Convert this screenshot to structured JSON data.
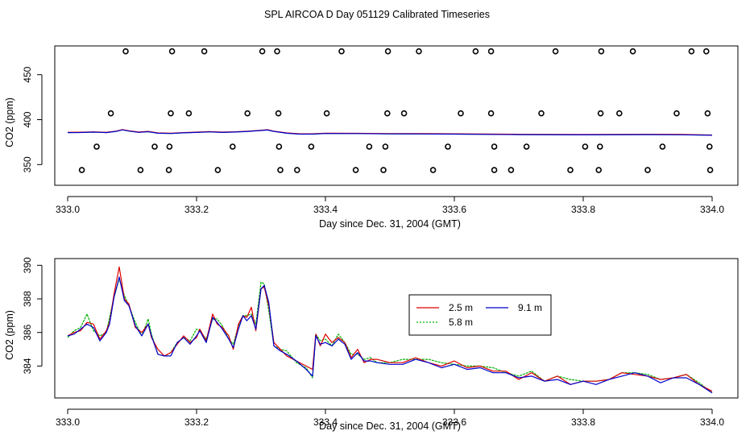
{
  "title": "SPL AIRCOA D  Day 051129  Calibrated Timeseries",
  "colors": {
    "s2_5": "#e00000",
    "s5_8": "#00b000",
    "s9_1": "#0000cc",
    "axis": "#000000"
  },
  "chart_data": [
    {
      "type": "line",
      "xlabel": "Day since Dec. 31, 2004 (GMT)",
      "ylabel": "CO2 (ppm)",
      "xlim": [
        333.0,
        334.0
      ],
      "ylim": [
        327,
        482
      ],
      "xticks": [
        "333.0",
        "333.2",
        "333.4",
        "333.6",
        "333.8",
        "334.0"
      ],
      "yticks": [
        {
          "v": 350,
          "label": "350"
        },
        {
          "v": 400,
          "label": "400"
        },
        {
          "v": 450,
          "label": "450"
        }
      ],
      "points": {
        "rows": [
          {
            "y": 476,
            "x": [
              333.09,
              333.162,
              333.212,
              333.302,
              333.325,
              333.425,
              333.497,
              333.545,
              333.633,
              333.657,
              333.757,
              333.828,
              333.877,
              333.968,
              333.991
            ]
          },
          {
            "y": 407,
            "x": [
              333.067,
              333.16,
              333.188,
              333.279,
              333.327,
              333.402,
              333.496,
              333.522,
              333.61,
              333.657,
              333.735,
              333.827,
              333.856,
              333.945,
              333.993
            ]
          },
          {
            "y": 370,
            "x": [
              333.045,
              333.135,
              333.158,
              333.256,
              333.328,
              333.378,
              333.468,
              333.493,
              333.59,
              333.662,
              333.712,
              333.803,
              333.826,
              333.923,
              333.996
            ]
          },
          {
            "y": 344,
            "x": [
              333.022,
              333.113,
              333.157,
              333.233,
              333.33,
              333.356,
              333.447,
              333.49,
              333.567,
              333.662,
              333.688,
              333.78,
              333.824,
              333.9,
              333.997
            ]
          }
        ]
      },
      "series": [
        {
          "name": "co2-line",
          "values": [
            [
              333.0,
              385.6
            ],
            [
              333.02,
              385.7
            ],
            [
              333.04,
              386.1
            ],
            [
              333.06,
              385.6
            ],
            [
              333.075,
              386.9
            ],
            [
              333.085,
              388.6
            ],
            [
              333.095,
              387.3
            ],
            [
              333.11,
              385.9
            ],
            [
              333.125,
              386.6
            ],
            [
              333.14,
              384.9
            ],
            [
              333.16,
              384.6
            ],
            [
              333.18,
              385.3
            ],
            [
              333.2,
              385.8
            ],
            [
              333.22,
              386.4
            ],
            [
              333.24,
              385.8
            ],
            [
              333.26,
              386.2
            ],
            [
              333.28,
              386.9
            ],
            [
              333.3,
              387.9
            ],
            [
              333.31,
              388.5
            ],
            [
              333.32,
              386.9
            ],
            [
              333.34,
              384.9
            ],
            [
              333.36,
              383.9
            ],
            [
              333.38,
              383.9
            ],
            [
              333.4,
              384.6
            ],
            [
              333.45,
              384.5
            ],
            [
              333.5,
              384.2
            ],
            [
              333.55,
              384.1
            ],
            [
              333.6,
              383.9
            ],
            [
              333.7,
              383.4
            ],
            [
              333.8,
              383.1
            ],
            [
              333.9,
              383.4
            ],
            [
              333.95,
              383.2
            ],
            [
              334.0,
              382.6
            ]
          ]
        }
      ]
    },
    {
      "type": "line",
      "xlabel": "Day since Dec. 31, 2004 (GMT)",
      "ylabel": "CO2 (ppm)",
      "xlim": [
        333.0,
        334.0
      ],
      "ylim": [
        382.1,
        390.4
      ],
      "xticks": [
        "333.0",
        "333.2",
        "333.4",
        "333.6",
        "333.8",
        "334.0"
      ],
      "yticks": [
        {
          "v": 384,
          "label": "384"
        },
        {
          "v": 386,
          "label": "386"
        },
        {
          "v": 388,
          "label": "388"
        },
        {
          "v": 390,
          "label": "390"
        }
      ],
      "legend": [
        {
          "label": "2.5 m",
          "series": "s2_5",
          "style": "solid"
        },
        {
          "label": "5.8 m",
          "series": "s5_8",
          "style": "dashed"
        },
        {
          "label": "9.1 m",
          "series": "s9_1",
          "style": "solid"
        }
      ],
      "base": [
        [
          333.0,
          385.8
        ],
        [
          333.01,
          385.9
        ],
        [
          333.02,
          386.2
        ],
        [
          333.03,
          386.6
        ],
        [
          333.04,
          386.3
        ],
        [
          333.05,
          385.7
        ],
        [
          333.06,
          386.0
        ],
        [
          333.065,
          386.6
        ],
        [
          333.072,
          388.2
        ],
        [
          333.08,
          389.5
        ],
        [
          333.088,
          388.0
        ],
        [
          333.095,
          387.6
        ],
        [
          333.105,
          386.5
        ],
        [
          333.115,
          385.9
        ],
        [
          333.125,
          386.5
        ],
        [
          333.13,
          385.8
        ],
        [
          333.14,
          384.8
        ],
        [
          333.15,
          384.6
        ],
        [
          333.16,
          384.7
        ],
        [
          333.17,
          385.4
        ],
        [
          333.18,
          385.8
        ],
        [
          333.19,
          385.3
        ],
        [
          333.2,
          385.9
        ],
        [
          333.205,
          386.1
        ],
        [
          333.215,
          385.5
        ],
        [
          333.225,
          386.9
        ],
        [
          333.232,
          386.6
        ],
        [
          333.24,
          386.3
        ],
        [
          333.25,
          385.7
        ],
        [
          333.257,
          385.1
        ],
        [
          333.265,
          386.3
        ],
        [
          333.272,
          387.0
        ],
        [
          333.278,
          386.8
        ],
        [
          333.285,
          387.2
        ],
        [
          333.292,
          386.2
        ],
        [
          333.3,
          388.6
        ],
        [
          333.305,
          388.9
        ],
        [
          333.312,
          387.5
        ],
        [
          333.32,
          385.2
        ],
        [
          333.33,
          384.9
        ],
        [
          333.34,
          384.7
        ],
        [
          333.355,
          384.3
        ],
        [
          333.37,
          383.9
        ],
        [
          333.38,
          383.5
        ],
        [
          333.385,
          385.8
        ],
        [
          333.392,
          385.3
        ],
        [
          333.4,
          385.5
        ],
        [
          333.41,
          385.2
        ],
        [
          333.42,
          385.7
        ],
        [
          333.43,
          385.3
        ],
        [
          333.44,
          384.5
        ],
        [
          333.45,
          384.8
        ],
        [
          333.46,
          384.3
        ],
        [
          333.47,
          384.4
        ],
        [
          333.48,
          384.2
        ],
        [
          333.5,
          384.1
        ],
        [
          333.52,
          384.2
        ],
        [
          333.54,
          384.4
        ],
        [
          333.56,
          384.3
        ],
        [
          333.58,
          384.0
        ],
        [
          333.6,
          384.1
        ],
        [
          333.62,
          383.9
        ],
        [
          333.64,
          383.9
        ],
        [
          333.66,
          383.7
        ],
        [
          333.68,
          383.6
        ],
        [
          333.7,
          383.3
        ],
        [
          333.72,
          383.5
        ],
        [
          333.74,
          383.1
        ],
        [
          333.76,
          383.3
        ],
        [
          333.78,
          383.0
        ],
        [
          333.8,
          383.1
        ],
        [
          333.82,
          383.0
        ],
        [
          333.84,
          383.2
        ],
        [
          333.86,
          383.5
        ],
        [
          333.88,
          383.6
        ],
        [
          333.9,
          383.4
        ],
        [
          333.92,
          383.1
        ],
        [
          333.94,
          383.3
        ],
        [
          333.96,
          383.4
        ],
        [
          333.98,
          382.9
        ],
        [
          334.0,
          382.4
        ]
      ],
      "series": [
        {
          "name": "2.5 m",
          "key": "s2_5",
          "offsets": [
            0.0,
            0.1,
            -0.1,
            0.0,
            0.2,
            -0.1,
            0.1,
            0.0,
            0.1,
            0.4,
            0.0,
            0.1,
            -0.2,
            0.1,
            0.0,
            -0.1,
            0.2,
            0.0,
            0.1,
            -0.1,
            0.0,
            0.1,
            -0.2,
            0.1,
            0.0,
            0.2,
            -0.1,
            0.0,
            0.1,
            -0.1,
            0.2,
            0.0,
            0.1,
            0.3,
            -0.1,
            0.0,
            -0.2,
            0.1,
            0.2,
            0.1,
            -0.1,
            0.0,
            0.1,
            0.3,
            0.1,
            -0.1,
            0.4,
            0.2,
            0.0,
            0.1,
            0.0,
            0.2,
            -0.1,
            0.0,
            0.2,
            0.1,
            0.0,
            0.1,
            -0.1,
            0.0,
            0.2,
            0.0,
            0.1,
            0.0,
            0.1,
            -0.1,
            0.1,
            0.0,
            0.1,
            -0.1,
            0.0,
            0.1,
            0.0,
            0.1,
            -0.1,
            0.0,
            0.1,
            0.0,
            0.1,
            0.0,
            0.1
          ]
        },
        {
          "name": "5.8 m",
          "key": "s5_8",
          "offsets": [
            -0.1,
            0.2,
            0.1,
            0.5,
            -0.2,
            0.1,
            0.0,
            0.3,
            -0.1,
            -0.3,
            0.2,
            0.0,
            0.1,
            -0.1,
            0.3,
            0.1,
            -0.1,
            0.0,
            0.1,
            0.0,
            -0.1,
            0.2,
            0.3,
            0.0,
            0.1,
            -0.1,
            0.2,
            0.1,
            -0.1,
            0.2,
            0.1,
            0.0,
            0.2,
            -0.1,
            0.3,
            0.4,
            0.0,
            -0.2,
            0.0,
            0.1,
            0.2,
            -0.1,
            0.0,
            -0.2,
            0.1,
            0.2,
            0.1,
            0.0,
            0.2,
            0.1,
            0.2,
            -0.1,
            0.1,
            0.1,
            0.0,
            0.1,
            0.2,
            0.0,
            0.1,
            0.2,
            0.0,
            0.1,
            0.1,
            0.2,
            0.0,
            0.1,
            0.2,
            0.0,
            0.1,
            0.2,
            0.0,
            0.1,
            0.0,
            0.1,
            0.0,
            0.1,
            0.1,
            0.0,
            0.1,
            0.1,
            0.0
          ]
        },
        {
          "name": "9.1 m",
          "key": "s9_1",
          "offsets": [
            0.0,
            0.0,
            0.0,
            -0.1,
            0.0,
            -0.2,
            0.0,
            -0.1,
            -0.1,
            -0.2,
            -0.1,
            0.0,
            -0.1,
            -0.1,
            0.0,
            0.0,
            -0.1,
            0.0,
            -0.1,
            0.0,
            -0.1,
            0.0,
            -0.1,
            0.0,
            -0.1,
            0.0,
            0.0,
            -0.1,
            -0.1,
            0.0,
            -0.1,
            0.0,
            -0.1,
            -0.2,
            0.0,
            0.0,
            -0.1,
            0.3,
            0.0,
            0.0,
            0.0,
            0.0,
            -0.1,
            -0.1,
            0.0,
            0.0,
            -0.1,
            0.0,
            -0.1,
            0.0,
            -0.1,
            0.0,
            0.0,
            -0.1,
            0.0,
            0.0,
            -0.1,
            0.0,
            -0.1,
            -0.1,
            0.0,
            -0.1,
            0.0,
            -0.1,
            0.0,
            0.0,
            -0.1,
            0.0,
            -0.1,
            -0.1,
            0.0,
            -0.1,
            0.0,
            -0.1,
            0.0,
            0.0,
            -0.1,
            0.0,
            -0.1,
            0.0,
            0.0
          ]
        }
      ]
    }
  ]
}
